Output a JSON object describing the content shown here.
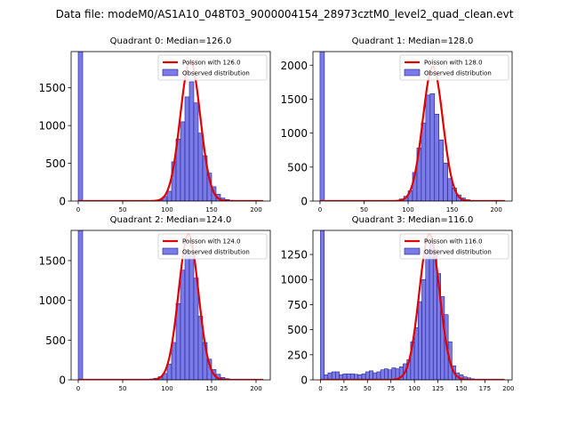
{
  "figure": {
    "suptitle": "Data file: modeM0/AS1A10_048T03_9000004154_28973cztM0_level2_quad_clean.evt"
  },
  "colors": {
    "bar_fill": "#7b7be8",
    "bar_edge": "#1f1f8f",
    "curve": "#e00000"
  },
  "chart_data": [
    {
      "type": "bar",
      "title": "Quadrant 0: Median=126.0",
      "legend": [
        "Poisson with 126.0",
        "Observed distribution"
      ],
      "legend_position": "top-right",
      "xlim": [
        -8,
        216
      ],
      "ylim": [
        0,
        1980
      ],
      "xticks": [
        "0",
        "50",
        "100",
        "150",
        "200"
      ],
      "yticks": [
        "0",
        "500",
        "1000",
        "1500"
      ],
      "poisson_mean": 126,
      "poisson_peak": 1860,
      "bin_width": 5,
      "bins": [
        {
          "x": 0,
          "y": 1980
        },
        {
          "x": 90,
          "y": 20
        },
        {
          "x": 95,
          "y": 60
        },
        {
          "x": 100,
          "y": 130
        },
        {
          "x": 105,
          "y": 520
        },
        {
          "x": 110,
          "y": 820
        },
        {
          "x": 115,
          "y": 1050
        },
        {
          "x": 120,
          "y": 1380
        },
        {
          "x": 125,
          "y": 1580
        },
        {
          "x": 130,
          "y": 1300
        },
        {
          "x": 135,
          "y": 900
        },
        {
          "x": 140,
          "y": 600
        },
        {
          "x": 145,
          "y": 370
        },
        {
          "x": 150,
          "y": 190
        },
        {
          "x": 155,
          "y": 90
        },
        {
          "x": 160,
          "y": 40
        },
        {
          "x": 165,
          "y": 20
        },
        {
          "x": 170,
          "y": 10
        }
      ]
    },
    {
      "type": "bar",
      "title": "Quadrant 1: Median=128.0",
      "legend": [
        "Poisson with 128.0",
        "Observed distribution"
      ],
      "legend_position": "top-right",
      "xlim": [
        -8,
        218
      ],
      "ylim": [
        0,
        2200
      ],
      "xticks": [
        "0",
        "50",
        "100",
        "150",
        "200"
      ],
      "yticks": [
        "0",
        "500",
        "1000",
        "1500",
        "2000"
      ],
      "poisson_mean": 128,
      "poisson_peak": 1980,
      "bin_width": 5,
      "bins": [
        {
          "x": 0,
          "y": 2200
        },
        {
          "x": 90,
          "y": 30
        },
        {
          "x": 95,
          "y": 70
        },
        {
          "x": 100,
          "y": 150
        },
        {
          "x": 105,
          "y": 420
        },
        {
          "x": 110,
          "y": 780
        },
        {
          "x": 115,
          "y": 1150
        },
        {
          "x": 120,
          "y": 1560
        },
        {
          "x": 125,
          "y": 1580
        },
        {
          "x": 130,
          "y": 1280
        },
        {
          "x": 135,
          "y": 900
        },
        {
          "x": 140,
          "y": 560
        },
        {
          "x": 145,
          "y": 330
        },
        {
          "x": 150,
          "y": 190
        },
        {
          "x": 155,
          "y": 90
        },
        {
          "x": 160,
          "y": 45
        },
        {
          "x": 165,
          "y": 20
        },
        {
          "x": 170,
          "y": 10
        }
      ]
    },
    {
      "type": "bar",
      "title": "Quadrant 2: Median=124.0",
      "legend": [
        "Poisson with 124.0",
        "Observed distribution"
      ],
      "legend_position": "top-right",
      "xlim": [
        -8,
        216
      ],
      "ylim": [
        0,
        1880
      ],
      "xticks": [
        "0",
        "50",
        "100",
        "150",
        "200"
      ],
      "yticks": [
        "0",
        "500",
        "1000",
        "1500"
      ],
      "poisson_mean": 124,
      "poisson_peak": 1830,
      "bin_width": 5,
      "bins": [
        {
          "x": 0,
          "y": 1880
        },
        {
          "x": 80,
          "y": 10
        },
        {
          "x": 85,
          "y": 20
        },
        {
          "x": 90,
          "y": 40
        },
        {
          "x": 95,
          "y": 80
        },
        {
          "x": 100,
          "y": 200
        },
        {
          "x": 105,
          "y": 470
        },
        {
          "x": 110,
          "y": 960
        },
        {
          "x": 115,
          "y": 1380
        },
        {
          "x": 120,
          "y": 1620
        },
        {
          "x": 125,
          "y": 1560
        },
        {
          "x": 130,
          "y": 1280
        },
        {
          "x": 135,
          "y": 800
        },
        {
          "x": 140,
          "y": 470
        },
        {
          "x": 145,
          "y": 260
        },
        {
          "x": 150,
          "y": 130
        },
        {
          "x": 155,
          "y": 70
        },
        {
          "x": 160,
          "y": 30
        },
        {
          "x": 165,
          "y": 15
        }
      ]
    },
    {
      "type": "bar",
      "title": "Quadrant 3: Median=116.0",
      "legend": [
        "Poisson with 116.0",
        "Observed distribution"
      ],
      "legend_position": "top-right",
      "xlim": [
        -8,
        204
      ],
      "ylim": [
        0,
        1490
      ],
      "xticks": [
        "0",
        "25",
        "50",
        "75",
        "100",
        "125",
        "150",
        "175",
        "200"
      ],
      "yticks": [
        "0",
        "250",
        "500",
        "750",
        "1000",
        "1250"
      ],
      "poisson_mean": 116,
      "poisson_peak": 1450,
      "bin_width": 4,
      "bins": [
        {
          "x": 0,
          "y": 1490
        },
        {
          "x": 4,
          "y": 50
        },
        {
          "x": 8,
          "y": 70
        },
        {
          "x": 12,
          "y": 80
        },
        {
          "x": 16,
          "y": 80
        },
        {
          "x": 20,
          "y": 50
        },
        {
          "x": 24,
          "y": 60
        },
        {
          "x": 28,
          "y": 60
        },
        {
          "x": 32,
          "y": 60
        },
        {
          "x": 36,
          "y": 55
        },
        {
          "x": 40,
          "y": 50
        },
        {
          "x": 44,
          "y": 60
        },
        {
          "x": 48,
          "y": 80
        },
        {
          "x": 52,
          "y": 90
        },
        {
          "x": 56,
          "y": 70
        },
        {
          "x": 60,
          "y": 80
        },
        {
          "x": 64,
          "y": 100
        },
        {
          "x": 68,
          "y": 110
        },
        {
          "x": 72,
          "y": 100
        },
        {
          "x": 76,
          "y": 120
        },
        {
          "x": 80,
          "y": 110
        },
        {
          "x": 84,
          "y": 130
        },
        {
          "x": 88,
          "y": 160
        },
        {
          "x": 92,
          "y": 200
        },
        {
          "x": 96,
          "y": 380
        },
        {
          "x": 100,
          "y": 520
        },
        {
          "x": 104,
          "y": 780
        },
        {
          "x": 108,
          "y": 1000
        },
        {
          "x": 112,
          "y": 1300
        },
        {
          "x": 116,
          "y": 1380
        },
        {
          "x": 120,
          "y": 1300
        },
        {
          "x": 124,
          "y": 1060
        },
        {
          "x": 128,
          "y": 830
        },
        {
          "x": 132,
          "y": 650
        },
        {
          "x": 136,
          "y": 380
        },
        {
          "x": 140,
          "y": 140
        },
        {
          "x": 144,
          "y": 70
        },
        {
          "x": 148,
          "y": 50
        },
        {
          "x": 152,
          "y": 30
        },
        {
          "x": 156,
          "y": 20
        },
        {
          "x": 160,
          "y": 10
        },
        {
          "x": 164,
          "y": 5
        }
      ]
    }
  ]
}
